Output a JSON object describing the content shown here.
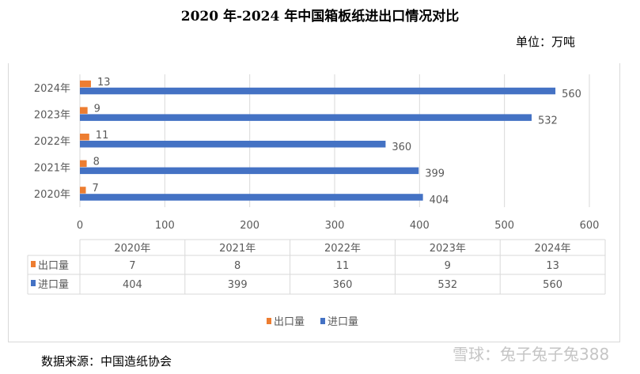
{
  "title": "2020 年-2024 年中国箱板纸进出口情况对比",
  "unit": "单位：万吨",
  "source": "数据来源：中国造纸协会",
  "watermark": "雪球：兔子兔子兔388",
  "colors": {
    "export": "#ed7d31",
    "import": "#4472c4"
  },
  "chart_data": {
    "type": "bar",
    "orientation": "horizontal",
    "categories": [
      "2020年",
      "2021年",
      "2022年",
      "2023年",
      "2024年"
    ],
    "series": [
      {
        "name": "出口量",
        "values": [
          7,
          8,
          11,
          9,
          13
        ]
      },
      {
        "name": "进口量",
        "values": [
          404,
          399,
          360,
          532,
          560
        ]
      }
    ],
    "xlim": [
      0,
      600
    ],
    "xticks": [
      0,
      100,
      200,
      300,
      400,
      500,
      600
    ],
    "grid": true,
    "legend": "bottom",
    "data_table": true
  }
}
